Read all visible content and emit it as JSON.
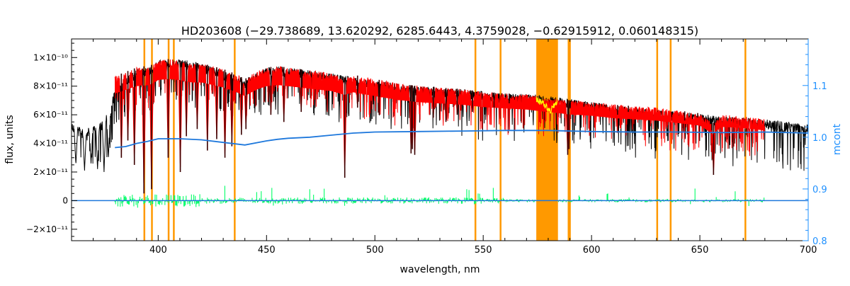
{
  "chart_data": {
    "type": "line",
    "title": "HD203608    (−29.738689, 13.620292, 6285.6443, 4.3759028, −0.62915912, 0.060148315)",
    "xlabel": "wavelength, nm",
    "ylabel": "flux, units",
    "y2label": "mcont",
    "xlim": [
      360,
      700
    ],
    "ylim": [
      -2.8e-11,
      1.13e-10
    ],
    "y2lim": [
      0.8,
      1.19
    ],
    "grid": false,
    "x_ticks": [
      400,
      450,
      500,
      550,
      600,
      650,
      700
    ],
    "y_ticks": [
      {
        "value": 1e-10,
        "label": "1×10⁻¹⁰"
      },
      {
        "value": 8e-11,
        "label": "8×10⁻¹¹"
      },
      {
        "value": 6e-11,
        "label": "6×10⁻¹¹"
      },
      {
        "value": 4e-11,
        "label": "4×10⁻¹¹"
      },
      {
        "value": 2e-11,
        "label": "2×10⁻¹¹"
      },
      {
        "value": 0,
        "label": "0"
      },
      {
        "value": -2e-11,
        "label": "−2×10⁻¹¹"
      }
    ],
    "y2_ticks": [
      0.8,
      0.9,
      1.0,
      1.1
    ],
    "colors": {
      "observed": "#000000",
      "model": "#ff0000",
      "masked_model": "#ffff00",
      "residuals": "#00ff66",
      "continuum": "#1e78dc",
      "masks": "#ff9900",
      "right_axis": "#1e90ff"
    },
    "mask_bands": [
      [
        393.2,
        393.6
      ],
      [
        396.7,
        397.1
      ],
      [
        404.4,
        404.9
      ],
      [
        406.8,
        407.3
      ],
      [
        434.9,
        435.3
      ],
      [
        546.0,
        546.6
      ],
      [
        557.6,
        558.1
      ],
      [
        574.5,
        584.5
      ],
      [
        589.0,
        589.5
      ],
      [
        589.6,
        590.0
      ],
      [
        629.9,
        630.4
      ],
      [
        636.1,
        636.6
      ],
      [
        670.6,
        671.0
      ]
    ],
    "series": [
      {
        "key": "observed",
        "axis": "left",
        "x": [
          360,
          365,
          370,
          375,
          378,
          380,
          390,
          395,
          400,
          410,
          420,
          430,
          440,
          450,
          455,
          460,
          480,
          500,
          520,
          540,
          560,
          575,
          590,
          600,
          620,
          640,
          660,
          680,
          700
        ],
        "y": [
          5.5e-11,
          5e-11,
          5.3e-11,
          5.8e-11,
          6.5e-11,
          8e-11,
          9.2e-11,
          9.4e-11,
          9.8e-11,
          9.9e-11,
          9.6e-11,
          9.1e-11,
          8.5e-11,
          9.3e-11,
          9.4e-11,
          9.3e-11,
          8.9e-11,
          8.4e-11,
          8e-11,
          7.8e-11,
          7.5e-11,
          7.4e-11,
          7.1e-11,
          6.9e-11,
          6.5e-11,
          6.2e-11,
          5.9e-11,
          5.7e-11,
          5.3e-11
        ],
        "lines": [
          {
            "x": 362,
            "y": 2.5e-11
          },
          {
            "x": 366,
            "y": 2.1e-11
          },
          {
            "x": 369,
            "y": 2.6e-11
          },
          {
            "x": 372,
            "y": 2.2e-11
          },
          {
            "x": 375,
            "y": 2e-11
          },
          {
            "x": 377,
            "y": 2.9e-11
          }
        ]
      },
      {
        "key": "model",
        "axis": "left",
        "x": [
          380,
          385,
          390,
          393,
          395,
          397,
          400,
          405,
          410,
          415,
          420,
          425,
          430,
          435,
          440,
          445,
          450,
          455,
          460,
          470,
          480,
          486,
          490,
          500,
          510,
          520,
          530,
          540,
          550,
          560,
          570,
          575,
          580,
          590,
          600,
          610,
          620,
          630,
          640,
          650,
          656,
          660,
          670,
          680
        ],
        "y": [
          8.7e-11,
          9e-11,
          9.3e-11,
          9.4e-11,
          9.3e-11,
          9.5e-11,
          9.8e-11,
          9.9e-11,
          9.8e-11,
          9.6e-11,
          9.6e-11,
          9.4e-11,
          9.2e-11,
          8.9e-11,
          8.5e-11,
          9e-11,
          9.3e-11,
          9.4e-11,
          9.3e-11,
          9.1e-11,
          8.9e-11,
          8.6e-11,
          8.8e-11,
          8.5e-11,
          8.2e-11,
          8e-11,
          7.9e-11,
          7.8e-11,
          7.6e-11,
          7.5e-11,
          7.4e-11,
          7.3e-11,
          7.2e-11,
          7e-11,
          6.9e-11,
          6.7e-11,
          6.6e-11,
          6.5e-11,
          6.3e-11,
          6.1e-11,
          5.4e-11,
          6e-11,
          5.9e-11,
          5.7e-11
        ],
        "lines": [
          {
            "x": 383,
            "y": 3e-11
          },
          {
            "x": 386,
            "y": 4.2e-11
          },
          {
            "x": 389,
            "y": 2.5e-11
          },
          {
            "x": 393.4,
            "y": 5e-12
          },
          {
            "x": 396.9,
            "y": 8e-12
          },
          {
            "x": 404.6,
            "y": 3e-11
          },
          {
            "x": 410.2,
            "y": 2e-11
          },
          {
            "x": 413,
            "y": 4.5e-11
          },
          {
            "x": 418,
            "y": 5e-11
          },
          {
            "x": 422.7,
            "y": 3.5e-11
          },
          {
            "x": 427,
            "y": 4.3e-11
          },
          {
            "x": 430.8,
            "y": 3e-11
          },
          {
            "x": 434,
            "y": 3.8e-11
          },
          {
            "x": 438.4,
            "y": 4.6e-11
          },
          {
            "x": 440.5,
            "y": 5e-11
          },
          {
            "x": 452,
            "y": 6e-11
          },
          {
            "x": 458,
            "y": 5.5e-11
          },
          {
            "x": 466,
            "y": 6.2e-11
          },
          {
            "x": 486.1,
            "y": 1.6e-11
          },
          {
            "x": 492,
            "y": 6.5e-11
          },
          {
            "x": 502,
            "y": 6e-11
          },
          {
            "x": 516.7,
            "y": 3.3e-11
          },
          {
            "x": 517.3,
            "y": 3.6e-11
          },
          {
            "x": 518.4,
            "y": 3.2e-11
          },
          {
            "x": 527,
            "y": 5.8e-11
          },
          {
            "x": 532.8,
            "y": 5.5e-11
          },
          {
            "x": 538,
            "y": 6e-11
          },
          {
            "x": 545,
            "y": 6.2e-11
          },
          {
            "x": 555,
            "y": 6.5e-11
          },
          {
            "x": 562,
            "y": 6.8e-11
          },
          {
            "x": 589.0,
            "y": 3.2e-11
          },
          {
            "x": 589.6,
            "y": 3.6e-11
          },
          {
            "x": 612,
            "y": 6e-11
          },
          {
            "x": 617,
            "y": 6.2e-11
          },
          {
            "x": 643,
            "y": 5.6e-11
          },
          {
            "x": 649,
            "y": 5.8e-11
          },
          {
            "x": 656.3,
            "y": 1.8e-11
          }
        ]
      },
      {
        "key": "masked_model",
        "axis": "left",
        "x": [
          574.5,
          578,
          581,
          584.5
        ],
        "y": [
          7.3e-11,
          7e-11,
          6.5e-11,
          7.2e-11
        ]
      },
      {
        "key": "continuum",
        "axis": "right",
        "x": [
          380,
          385,
          390,
          395,
          400,
          405,
          410,
          420,
          430,
          440,
          450,
          455,
          460,
          470,
          480,
          490,
          500,
          520,
          540,
          560,
          580,
          600,
          620,
          640,
          660,
          680,
          700
        ],
        "y": [
          0.98,
          0.982,
          0.988,
          0.992,
          0.997,
          0.997,
          0.997,
          0.995,
          0.99,
          0.985,
          0.993,
          0.996,
          0.998,
          1.0,
          1.004,
          1.008,
          1.01,
          1.011,
          1.012,
          1.013,
          1.013,
          1.011,
          1.01,
          1.01,
          1.009,
          1.01,
          1.008
        ]
      },
      {
        "key": "residuals",
        "axis": "left",
        "x_start": 380,
        "x_end": 680,
        "y_center": 0,
        "scatter": 1.4e-12,
        "gaps": [
          [
            574.5,
            584.5
          ]
        ]
      }
    ]
  }
}
